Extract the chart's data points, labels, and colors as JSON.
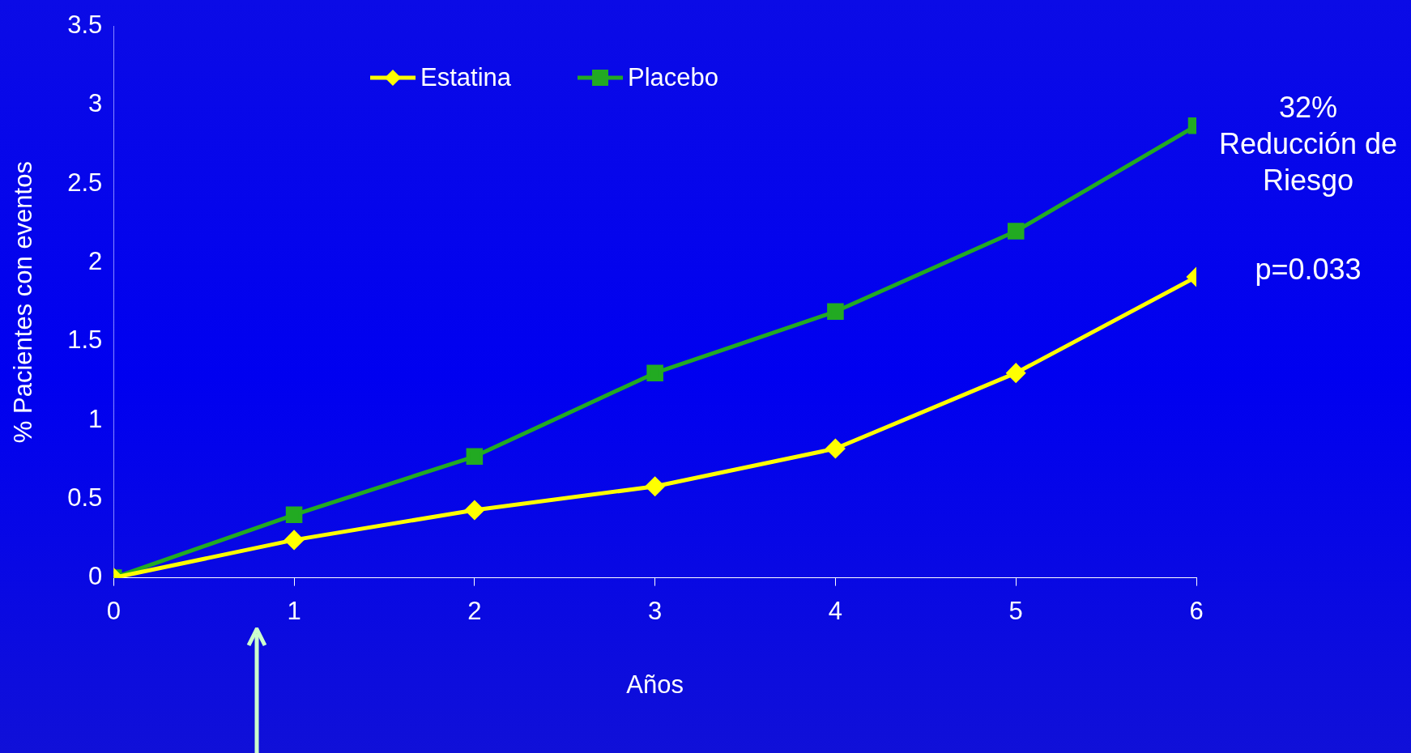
{
  "chart_data": {
    "type": "line",
    "xlabel": "Años",
    "ylabel": "% Pacientes con eventos",
    "x": [
      0,
      1,
      2,
      3,
      4,
      5,
      6
    ],
    "series": [
      {
        "name": "Estatina",
        "color": "#ffff00",
        "marker": "diamond",
        "values": [
          0,
          0.24,
          0.43,
          0.58,
          0.82,
          1.3,
          1.91
        ]
      },
      {
        "name": "Placebo",
        "color": "#22aa22",
        "marker": "square",
        "values": [
          0,
          0.4,
          0.77,
          1.3,
          1.69,
          2.2,
          2.87
        ]
      }
    ],
    "xlim": [
      0,
      6
    ],
    "xticks": [
      0,
      1,
      2,
      3,
      4,
      5,
      6
    ],
    "ylim": [
      0,
      3.5
    ],
    "yticks": [
      0,
      0.5,
      1,
      1.5,
      2,
      2.5,
      3,
      3.5
    ],
    "grid": false,
    "legend": "top left",
    "line_style": "solid",
    "annotations": [
      "32% Reducción de Riesgo",
      "p=0.033"
    ]
  }
}
